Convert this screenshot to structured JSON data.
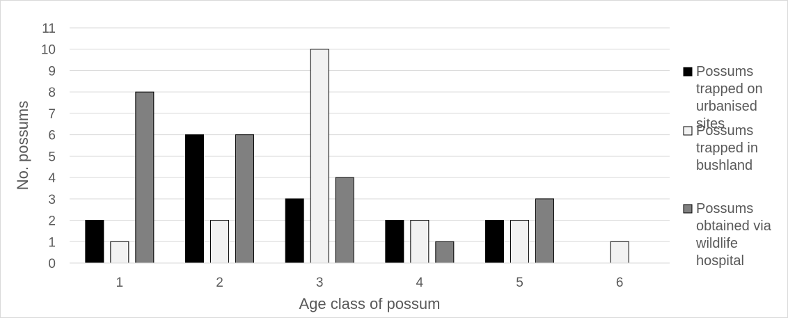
{
  "chart_data": {
    "type": "bar",
    "title": "",
    "xlabel": "Age class of possum",
    "ylabel": "No. possums",
    "categories": [
      "1",
      "2",
      "3",
      "4",
      "5",
      "6"
    ],
    "ylim": [
      0,
      11
    ],
    "yticks": [
      "0",
      "1",
      "2",
      "3",
      "4",
      "5",
      "6",
      "7",
      "8",
      "9",
      "10",
      "11"
    ],
    "grid": true,
    "legend_position": "right",
    "series": [
      {
        "name": "Possums trapped on urbanised sites",
        "name_lines": [
          "Possums",
          "trapped on",
          "urbanised",
          "sites"
        ],
        "color": "#000000",
        "values": [
          2,
          6,
          3,
          2,
          2,
          0
        ]
      },
      {
        "name": "Possums trapped in bushland",
        "name_lines": [
          "Possums",
          "trapped in",
          "bushland"
        ],
        "color": "#f2f2f2",
        "values": [
          1,
          2,
          10,
          2,
          2,
          1
        ]
      },
      {
        "name": "Possums obtained via wildlife hospital",
        "name_lines": [
          "Possums",
          "obtained via",
          "wildlife",
          "hospital"
        ],
        "color": "#808080",
        "values": [
          8,
          6,
          4,
          1,
          3,
          0
        ]
      }
    ]
  }
}
